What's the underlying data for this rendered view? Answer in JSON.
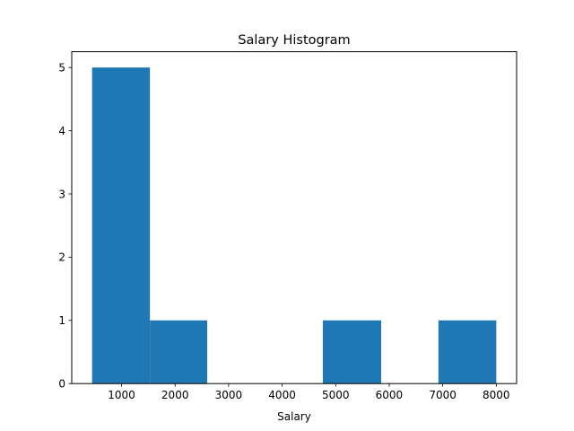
{
  "chart_data": {
    "type": "bar",
    "title": "Salary Histogram",
    "xlabel": "Salary",
    "ylabel": "",
    "bins": [
      {
        "start": 450,
        "end": 1530,
        "count": 5
      },
      {
        "start": 1530,
        "end": 2600,
        "count": 1
      },
      {
        "start": 2600,
        "end": 3680,
        "count": 0
      },
      {
        "start": 3680,
        "end": 4760,
        "count": 0
      },
      {
        "start": 4760,
        "end": 5850,
        "count": 1
      },
      {
        "start": 5850,
        "end": 6920,
        "count": 0
      },
      {
        "start": 6920,
        "end": 8000,
        "count": 1
      }
    ],
    "xlim": [
      70,
      8380
    ],
    "ylim": [
      0,
      5.25
    ],
    "xticks": [
      "1000",
      "2000",
      "3000",
      "4000",
      "5000",
      "6000",
      "7000",
      "8000"
    ],
    "xtick_values": [
      1000,
      2000,
      3000,
      4000,
      5000,
      6000,
      7000,
      8000
    ],
    "yticks": [
      "0",
      "1",
      "2",
      "3",
      "4",
      "5"
    ],
    "ytick_values": [
      0,
      1,
      2,
      3,
      4,
      5
    ],
    "bar_color": "#1f77b4",
    "grid": false
  }
}
